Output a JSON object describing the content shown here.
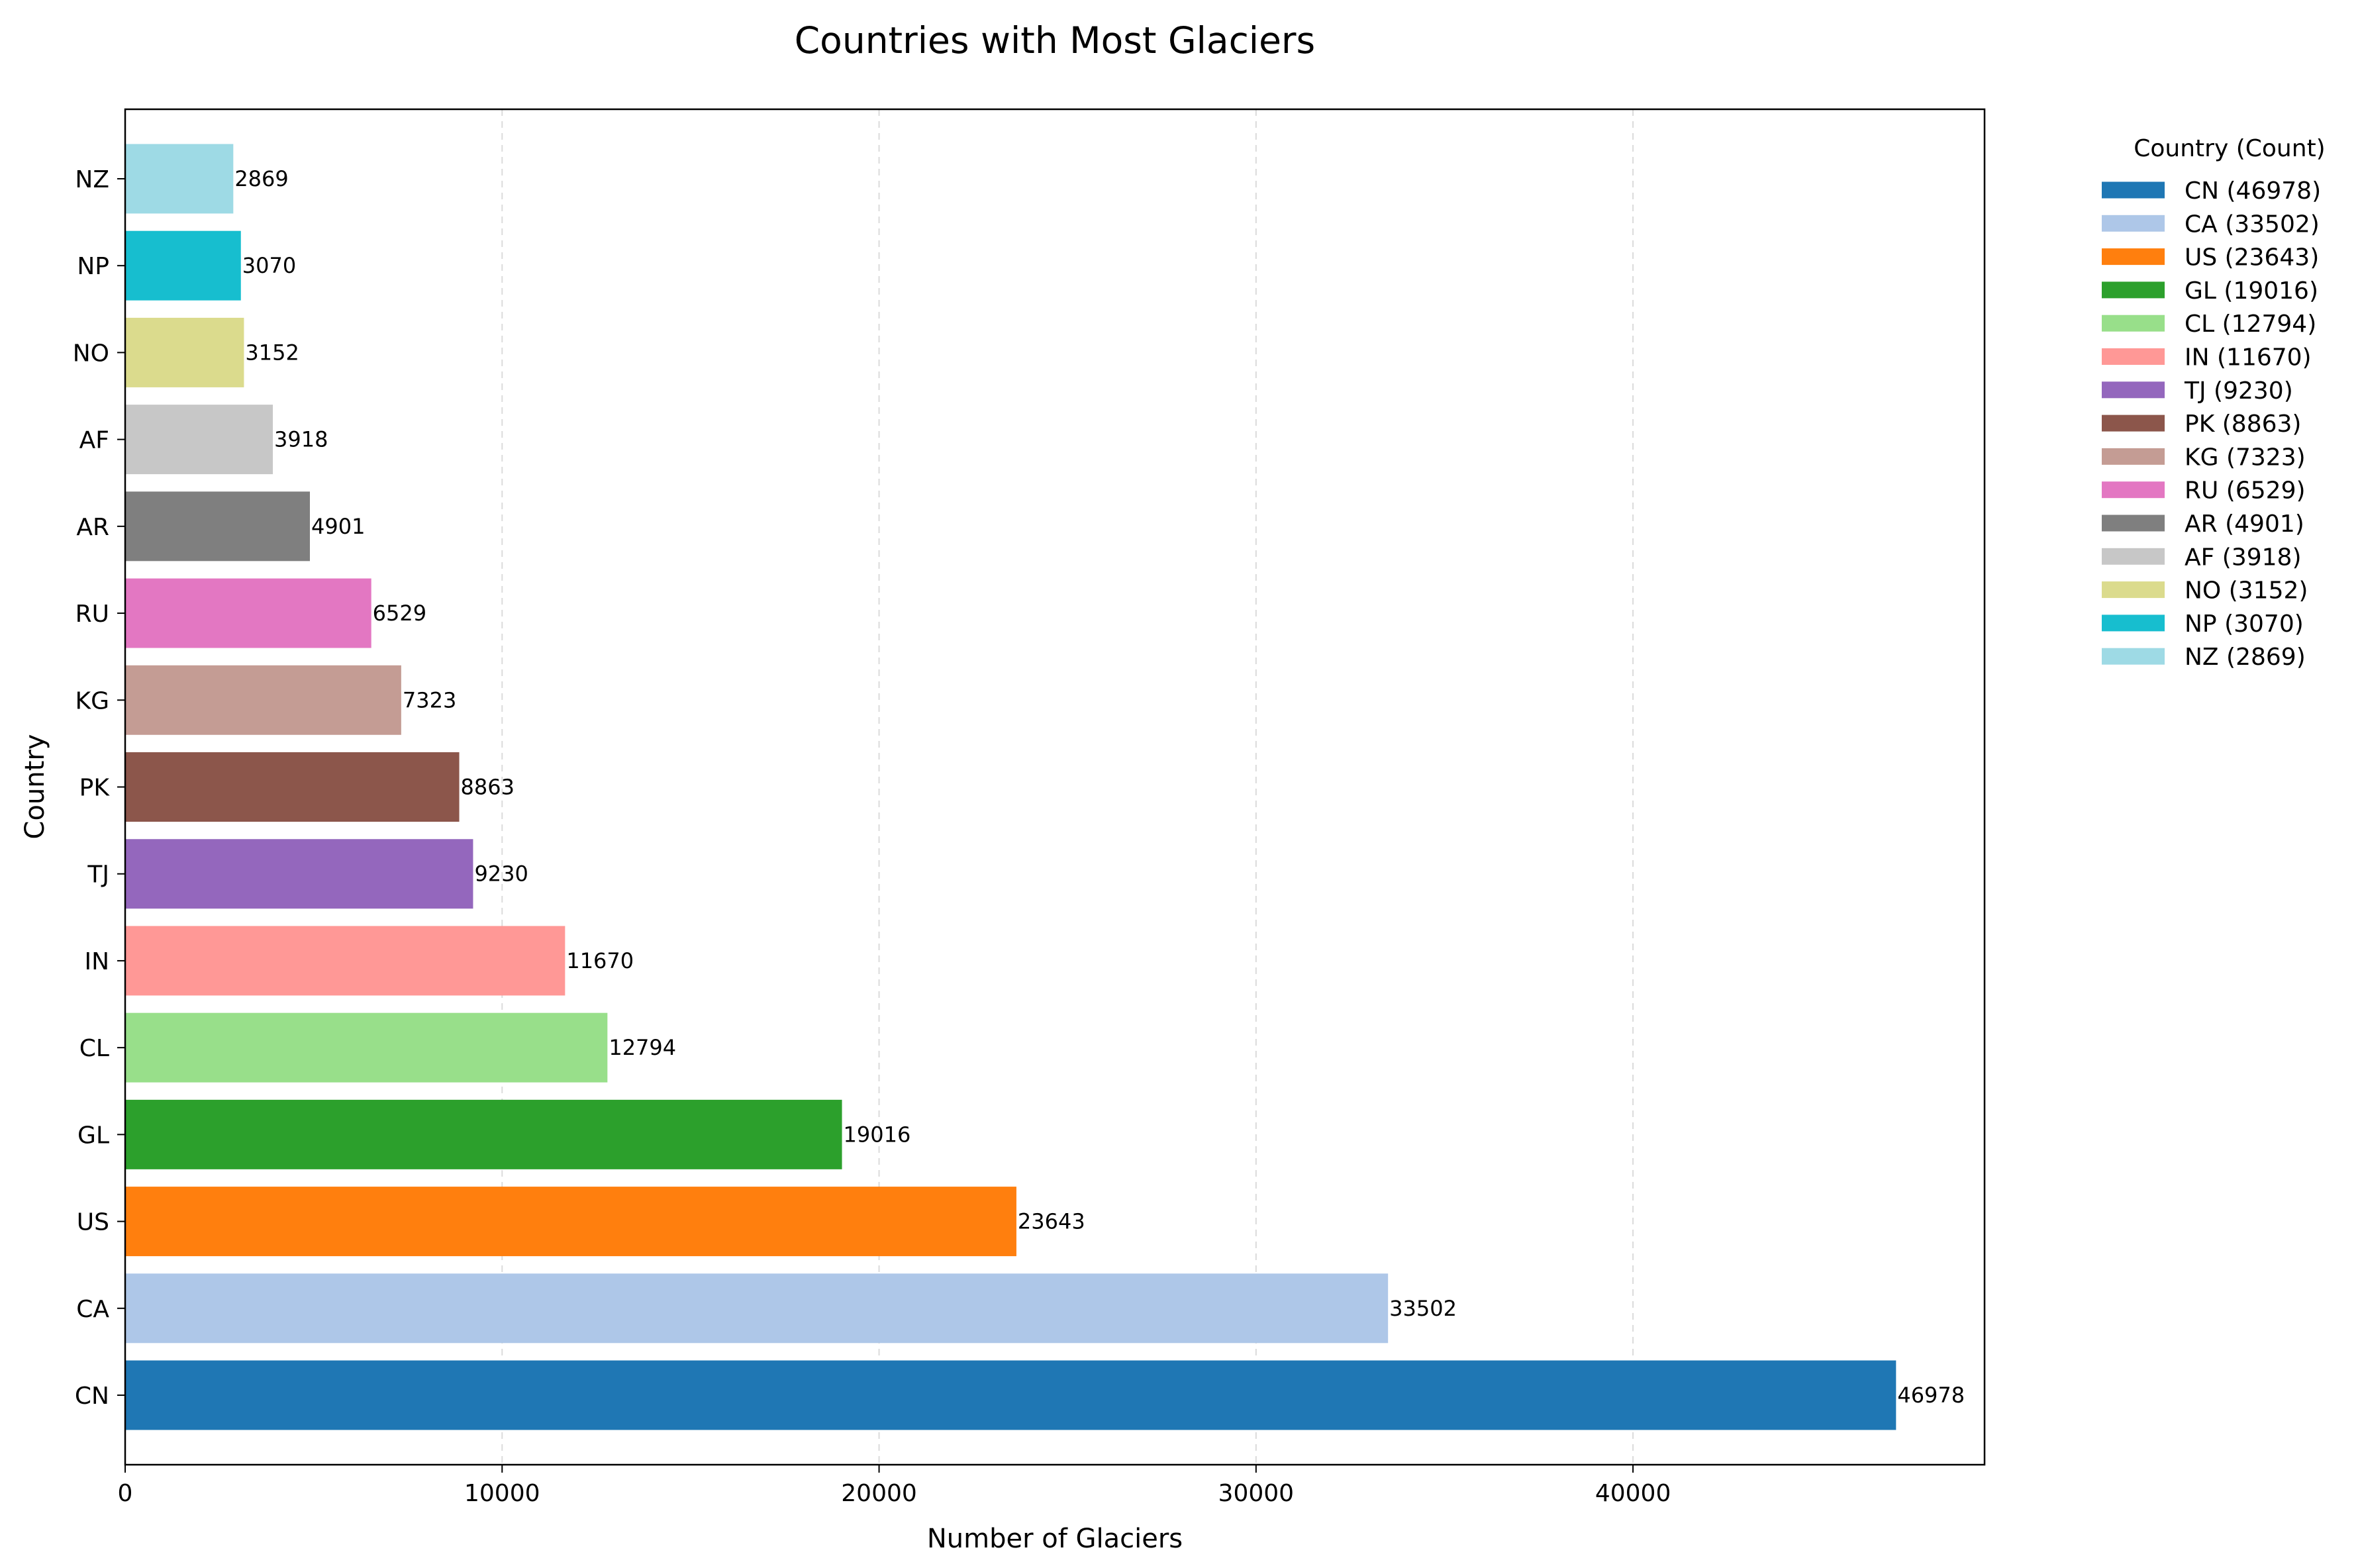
{
  "chart_data": {
    "type": "bar",
    "orientation": "horizontal",
    "title": "Countries with Most Glaciers",
    "xlabel": "Number of Glaciers",
    "ylabel": "Country",
    "xlim": [
      0,
      49326
    ],
    "xticks": [
      0,
      10000,
      20000,
      30000,
      40000
    ],
    "grid": "x-dashed",
    "legend_title": "Country (Count)",
    "legend_position": "outside-right",
    "categories": [
      "CN",
      "CA",
      "US",
      "GL",
      "CL",
      "IN",
      "TJ",
      "PK",
      "KG",
      "RU",
      "AR",
      "AF",
      "NO",
      "NP",
      "NZ"
    ],
    "values": [
      46978,
      33502,
      23643,
      19016,
      12794,
      11670,
      9230,
      8863,
      7323,
      6529,
      4901,
      3918,
      3152,
      3070,
      2869
    ],
    "colors": [
      "#1f77b4",
      "#aec7e8",
      "#ff7f0e",
      "#2ca02c",
      "#98df8a",
      "#ff9896",
      "#9467bd",
      "#8c564b",
      "#c49c94",
      "#e377c2",
      "#7f7f7f",
      "#c7c7c7",
      "#dbdb8d",
      "#17becf",
      "#9edae5"
    ],
    "legend_entries": [
      "CN (46978)",
      "CA (33502)",
      "US (23643)",
      "GL (19016)",
      "CL (12794)",
      "IN (11670)",
      "TJ (9230)",
      "PK (8863)",
      "KG (7323)",
      "RU (6529)",
      "AR (4901)",
      "AF (3918)",
      "NO (3152)",
      "NP (3070)",
      "NZ (2869)"
    ]
  }
}
